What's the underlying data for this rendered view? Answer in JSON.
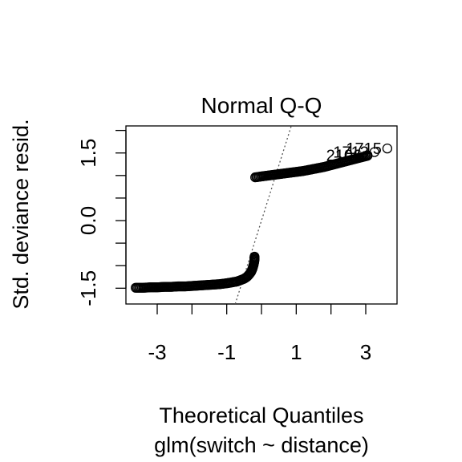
{
  "chart_data": {
    "type": "scatter",
    "title": "Normal Q-Q",
    "xlabel": "Theoretical Quantiles",
    "subtitle": "glm(switch ~ distance)",
    "ylabel": "Std. deviance resid.",
    "xlim": [
      -3.9,
      3.9
    ],
    "ylim": [
      -1.85,
      2.1
    ],
    "x_ticks": [
      -3,
      -2,
      -1,
      0,
      1,
      2,
      3
    ],
    "x_tick_labels": [
      "-3",
      "",
      "-1",
      "",
      "1",
      "",
      "3"
    ],
    "y_ticks": [
      -1.5,
      -1.0,
      -0.5,
      0.0,
      0.5,
      1.0,
      1.5,
      2.0
    ],
    "y_tick_labels": [
      "-1.5",
      "",
      "",
      "0.0",
      "",
      "",
      "1.5",
      ""
    ],
    "reference_line": {
      "slope": 2.45,
      "intercept": 0.0,
      "style": "dotted",
      "color": "#555555"
    },
    "lower_branch": [
      [
        -3.62,
        -1.49
      ],
      [
        -3.4,
        -1.49
      ],
      [
        -3.2,
        -1.48
      ],
      [
        -3.0,
        -1.48
      ],
      [
        -2.8,
        -1.47
      ],
      [
        -2.6,
        -1.47
      ],
      [
        -2.4,
        -1.46
      ],
      [
        -2.2,
        -1.46
      ],
      [
        -2.0,
        -1.45
      ],
      [
        -1.8,
        -1.44
      ],
      [
        -1.6,
        -1.43
      ],
      [
        -1.4,
        -1.42
      ],
      [
        -1.2,
        -1.41
      ],
      [
        -1.0,
        -1.39
      ],
      [
        -0.85,
        -1.37
      ],
      [
        -0.7,
        -1.35
      ],
      [
        -0.6,
        -1.32
      ],
      [
        -0.5,
        -1.29
      ],
      [
        -0.42,
        -1.25
      ],
      [
        -0.36,
        -1.2
      ],
      [
        -0.3,
        -1.14
      ],
      [
        -0.26,
        -1.07
      ],
      [
        -0.23,
        -0.99
      ],
      [
        -0.21,
        -0.92
      ],
      [
        -0.2,
        -0.86
      ],
      [
        -0.2,
        -0.8
      ]
    ],
    "upper_branch": [
      [
        -0.18,
        0.96
      ],
      [
        0.0,
        0.98
      ],
      [
        0.2,
        1.0
      ],
      [
        0.4,
        1.02
      ],
      [
        0.6,
        1.04
      ],
      [
        0.8,
        1.06
      ],
      [
        1.0,
        1.08
      ],
      [
        1.2,
        1.1
      ],
      [
        1.4,
        1.13
      ],
      [
        1.6,
        1.16
      ],
      [
        1.8,
        1.19
      ],
      [
        2.0,
        1.23
      ],
      [
        2.2,
        1.27
      ],
      [
        2.4,
        1.31
      ],
      [
        2.6,
        1.35
      ],
      [
        2.8,
        1.39
      ],
      [
        2.95,
        1.42
      ],
      [
        3.05,
        1.44
      ]
    ],
    "labeled_points": [
      {
        "label": "1715",
        "x": 3.62,
        "y": 1.6
      },
      {
        "label": "1713",
        "x": 3.25,
        "y": 1.52
      },
      {
        "label": "2106",
        "x": 3.05,
        "y": 1.45
      }
    ]
  }
}
